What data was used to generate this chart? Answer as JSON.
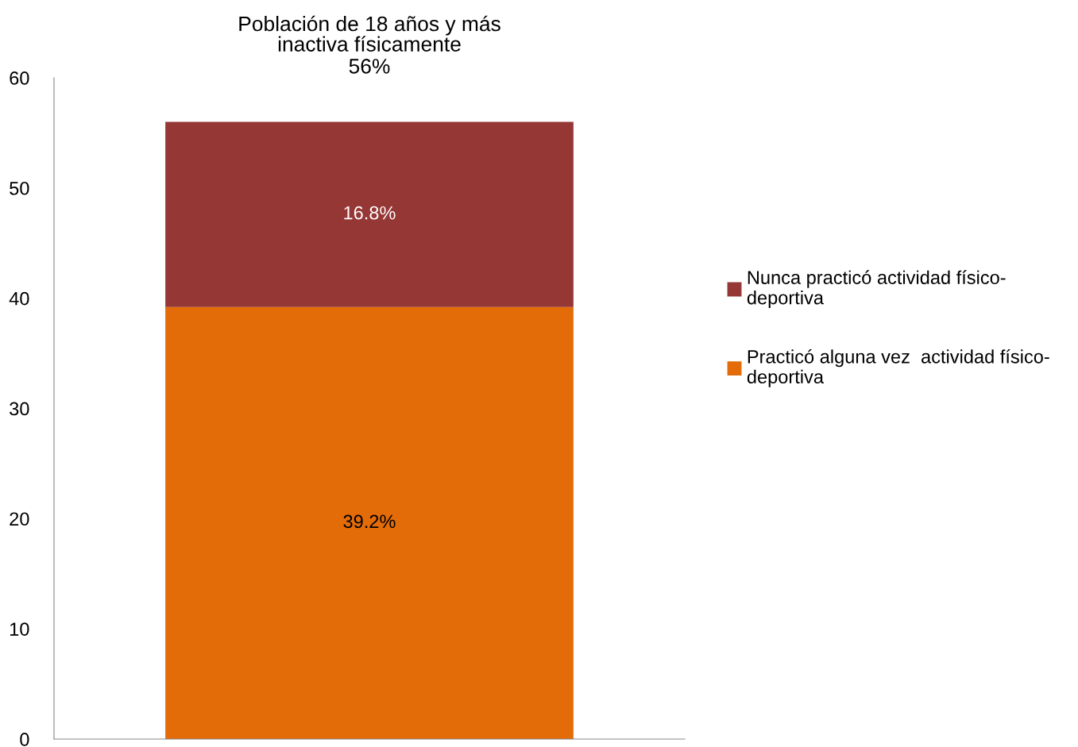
{
  "chart_data": {
    "type": "bar",
    "title": "Población de 18 años y más\ninactiva físicamente",
    "stacked": true,
    "categories": [
      null
    ],
    "series": [
      {
        "name": "Practicó alguna vez  actividad físico-deportiva",
        "color": "#e36c09",
        "values": [
          39.2
        ],
        "value_labels": [
          "39.2%"
        ]
      },
      {
        "name": "Nunca practicó actividad físico-deportiva",
        "color": "#953735",
        "values": [
          16.8
        ],
        "value_labels": [
          "16.8%"
        ]
      }
    ],
    "totals": [
      "56%"
    ],
    "ylim": [
      0,
      60
    ],
    "yticks": [
      0,
      10,
      20,
      30,
      40,
      50,
      60
    ],
    "grid": false,
    "legend": "right"
  }
}
